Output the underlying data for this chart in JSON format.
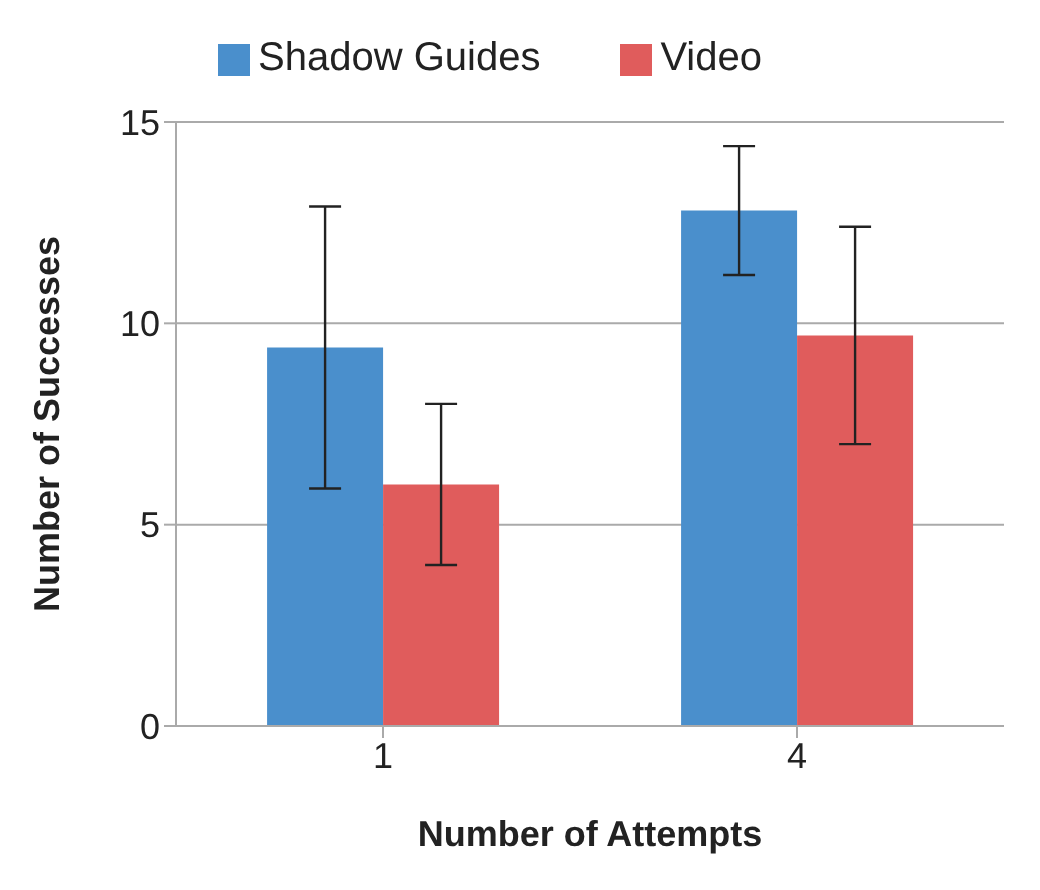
{
  "chart_data": {
    "type": "bar",
    "xlabel": "Number of Attempts",
    "ylabel": "Number of Successes",
    "categories": [
      "1",
      "4"
    ],
    "series": [
      {
        "name": "Shadow Guides",
        "color": "#4a8fcc",
        "values": [
          9.4,
          12.8
        ],
        "errors": [
          3.5,
          1.6
        ]
      },
      {
        "name": "Video",
        "color": "#e05c5c",
        "values": [
          6.0,
          9.7
        ],
        "errors": [
          2.0,
          2.7
        ]
      }
    ],
    "ylim": [
      0,
      15
    ],
    "yticks": [
      0,
      5,
      10,
      15
    ],
    "grid": "y",
    "legend": "top"
  }
}
